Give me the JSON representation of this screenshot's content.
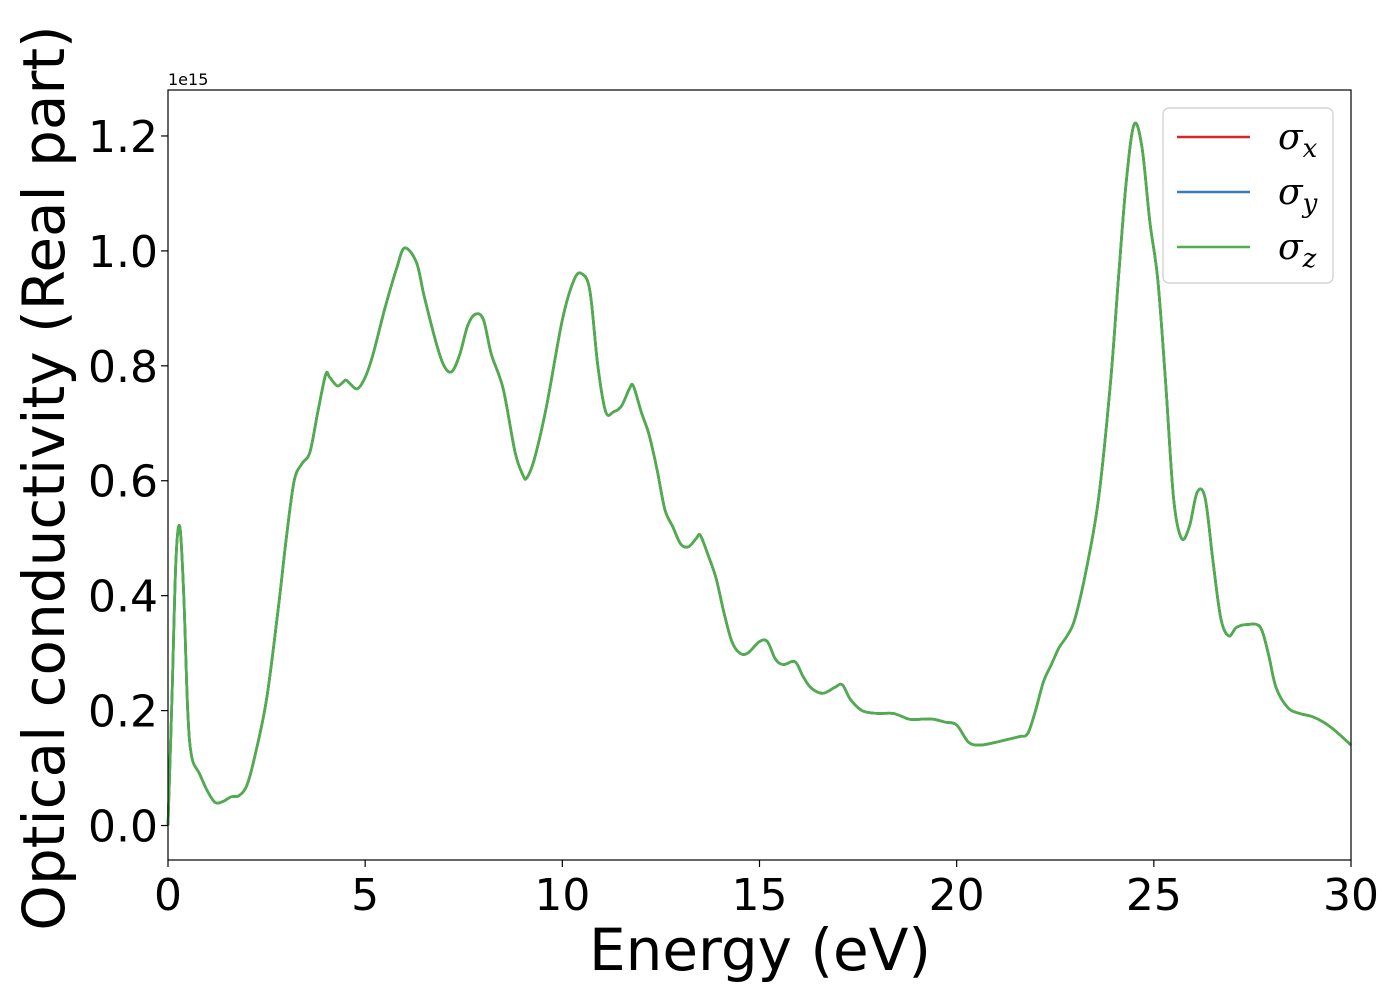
{
  "chart_data": {
    "type": "line",
    "xlabel": "Energy (eV)",
    "ylabel": "Optical conductivity (Real part)",
    "y_offset_label": "1e15",
    "xlim": [
      0,
      30
    ],
    "ylim": [
      -0.06,
      1.28
    ],
    "x_ticks": [
      0,
      5,
      10,
      15,
      20,
      25,
      30
    ],
    "x_tick_labels": [
      "0",
      "5",
      "10",
      "15",
      "20",
      "25",
      "30"
    ],
    "y_ticks": [
      0.0,
      0.2,
      0.4,
      0.6,
      0.8,
      1.0,
      1.2
    ],
    "y_tick_labels": [
      "0.0",
      "0.2",
      "0.4",
      "0.6",
      "0.8",
      "1.0",
      "1.2"
    ],
    "grid": false,
    "legend_position": "top-right",
    "series": [
      {
        "name": "σ_x",
        "legend_symbol": "σ",
        "legend_subscript": "x",
        "color": "#d62728",
        "x": [
          0,
          0.1,
          0.2,
          0.3,
          0.4,
          0.5,
          0.6,
          0.8,
          1.0,
          1.2,
          1.4,
          1.6,
          1.8,
          2.0,
          2.2,
          2.5,
          2.8,
          3.0,
          3.2,
          3.4,
          3.6,
          3.8,
          4.0,
          4.1,
          4.3,
          4.5,
          4.6,
          4.8,
          5.0,
          5.2,
          5.5,
          5.8,
          6.0,
          6.3,
          6.5,
          6.8,
          7.0,
          7.2,
          7.4,
          7.6,
          7.8,
          8.0,
          8.2,
          8.5,
          8.8,
          9.0,
          9.1,
          9.3,
          9.6,
          10.0,
          10.3,
          10.5,
          10.7,
          10.9,
          11.1,
          11.3,
          11.5,
          11.7,
          11.8,
          12.0,
          12.2,
          12.4,
          12.6,
          12.8,
          13.0,
          13.2,
          13.4,
          13.5,
          13.7,
          13.9,
          14.1,
          14.3,
          14.5,
          14.7,
          15.0,
          15.2,
          15.4,
          15.6,
          15.9,
          16.1,
          16.3,
          16.6,
          16.9,
          17.1,
          17.3,
          17.6,
          18.0,
          18.4,
          18.8,
          19.1,
          19.4,
          19.7,
          20.0,
          20.3,
          20.6,
          21.0,
          21.3,
          21.6,
          21.8,
          22.0,
          22.2,
          22.4,
          22.6,
          22.8,
          23.0,
          23.3,
          23.6,
          23.9,
          24.1,
          24.3,
          24.5,
          24.7,
          24.9,
          25.1,
          25.3,
          25.5,
          25.7,
          25.9,
          26.1,
          26.3,
          26.5,
          26.7,
          26.9,
          27.1,
          27.4,
          27.7,
          27.9,
          28.1,
          28.4,
          28.7,
          29.0,
          29.3,
          29.6,
          30.0
        ],
        "y": [
          0.0,
          0.22,
          0.46,
          0.52,
          0.4,
          0.2,
          0.12,
          0.09,
          0.06,
          0.04,
          0.042,
          0.05,
          0.052,
          0.07,
          0.12,
          0.22,
          0.38,
          0.5,
          0.6,
          0.63,
          0.65,
          0.72,
          0.785,
          0.78,
          0.765,
          0.775,
          0.77,
          0.76,
          0.78,
          0.82,
          0.9,
          0.97,
          1.005,
          0.98,
          0.92,
          0.84,
          0.8,
          0.79,
          0.82,
          0.87,
          0.89,
          0.88,
          0.82,
          0.76,
          0.65,
          0.61,
          0.605,
          0.64,
          0.73,
          0.88,
          0.95,
          0.96,
          0.93,
          0.8,
          0.72,
          0.72,
          0.73,
          0.76,
          0.765,
          0.72,
          0.68,
          0.62,
          0.55,
          0.52,
          0.49,
          0.485,
          0.5,
          0.505,
          0.47,
          0.43,
          0.37,
          0.32,
          0.3,
          0.3,
          0.32,
          0.32,
          0.29,
          0.28,
          0.285,
          0.26,
          0.24,
          0.23,
          0.24,
          0.245,
          0.22,
          0.2,
          0.195,
          0.195,
          0.185,
          0.185,
          0.185,
          0.18,
          0.175,
          0.145,
          0.14,
          0.145,
          0.15,
          0.155,
          0.16,
          0.2,
          0.25,
          0.28,
          0.31,
          0.33,
          0.36,
          0.45,
          0.57,
          0.77,
          0.95,
          1.12,
          1.22,
          1.18,
          1.05,
          0.95,
          0.77,
          0.57,
          0.5,
          0.52,
          0.58,
          0.57,
          0.46,
          0.36,
          0.33,
          0.345,
          0.35,
          0.345,
          0.3,
          0.24,
          0.205,
          0.195,
          0.19,
          0.18,
          0.165,
          0.14
        ]
      },
      {
        "name": "σ_y",
        "legend_symbol": "σ",
        "legend_subscript": "y",
        "color": "#3a7bb5",
        "same_as": "σ_x"
      },
      {
        "name": "σ_z",
        "legend_symbol": "σ",
        "legend_subscript": "z",
        "color": "#4daf4a",
        "same_as": "σ_x"
      }
    ]
  }
}
